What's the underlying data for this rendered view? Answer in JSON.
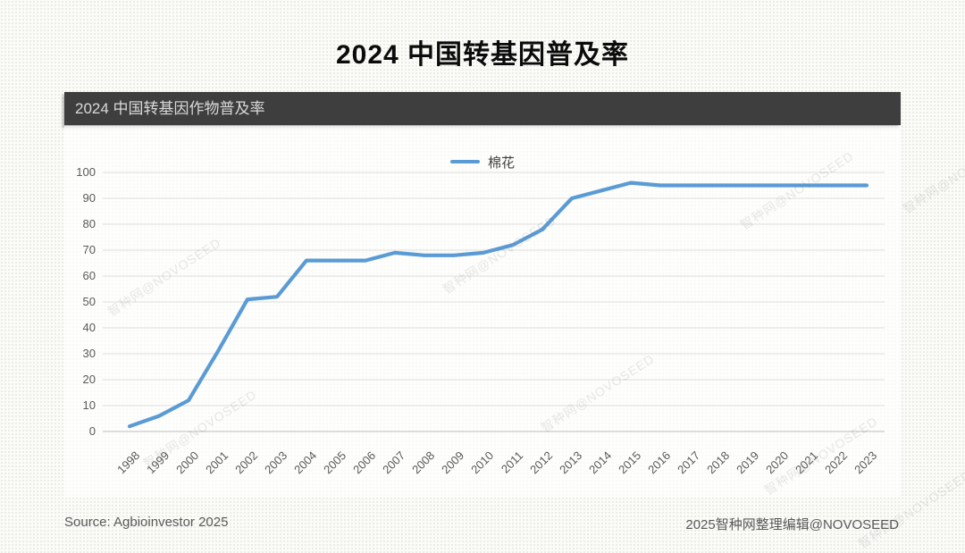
{
  "page": {
    "title": "2024 中国转基因普及率",
    "source": "Source: Agbioinvestor 2025",
    "credit": "2025智种网整理编辑@NOVOSEED",
    "watermark_text": "智种网@NOVOSEED"
  },
  "colors": {
    "line": "#5B9BD5",
    "header_bar": "#3E3E3E",
    "grid": "#e4e4e2",
    "axis_line": "#d2d2d0",
    "axis_text": "#595959"
  },
  "chart_data": {
    "type": "line",
    "title": "2024 中国转基因作物普及率",
    "x": [
      "1998",
      "1999",
      "2000",
      "2001",
      "2002",
      "2003",
      "2004",
      "2005",
      "2006",
      "2007",
      "2008",
      "2009",
      "2010",
      "2011",
      "2012",
      "2013",
      "2014",
      "2015",
      "2016",
      "2017",
      "2018",
      "2019",
      "2020",
      "2021",
      "2022",
      "2023"
    ],
    "series": [
      {
        "name": "棉花",
        "values": [
          2,
          6,
          12,
          31,
          51,
          52,
          66,
          66,
          66,
          69,
          68,
          68,
          69,
          72,
          78,
          90,
          93,
          96,
          95,
          95,
          95,
          95,
          95,
          95,
          95,
          95
        ]
      }
    ],
    "xlabel": "",
    "ylabel": "",
    "ylim": [
      0,
      100
    ],
    "yticks": [
      0,
      10,
      20,
      30,
      40,
      50,
      60,
      70,
      80,
      90,
      100
    ],
    "grid": "horizontal",
    "legend_position": "top-center"
  }
}
